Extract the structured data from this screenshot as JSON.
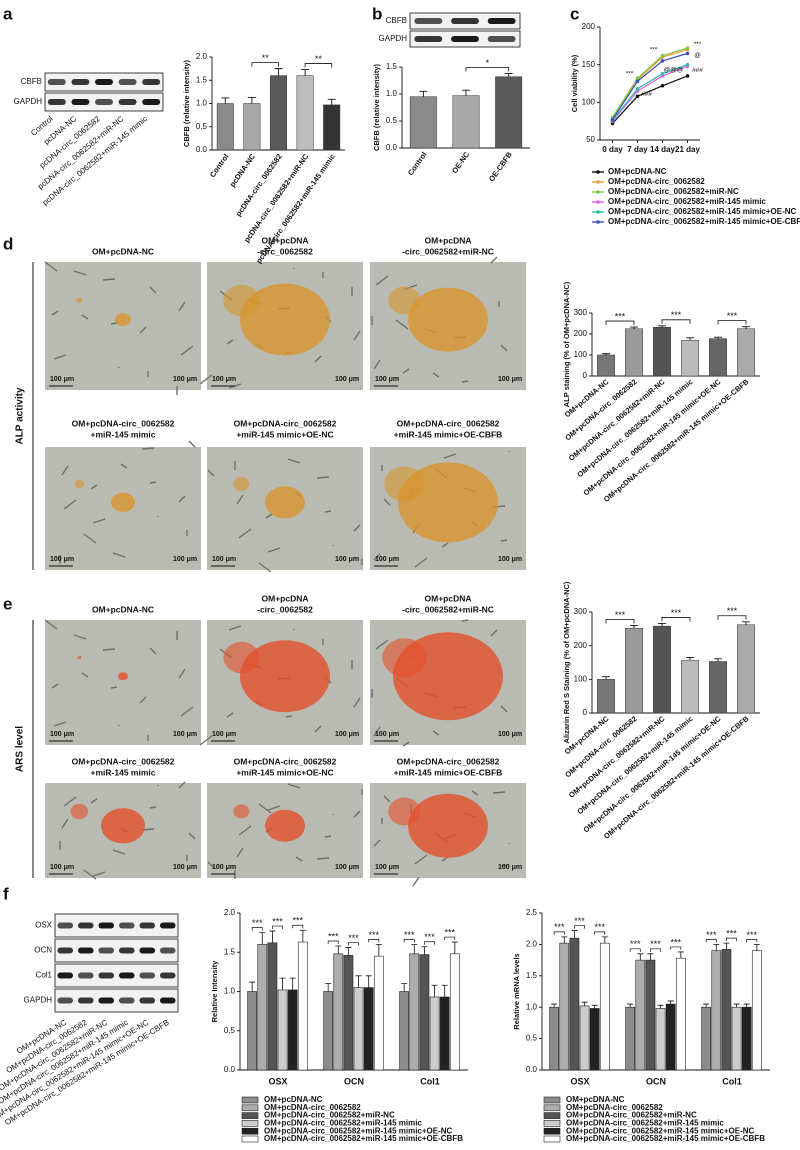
{
  "panels": [
    "a",
    "b",
    "c",
    "d",
    "e",
    "f"
  ],
  "blots": {
    "a": [
      "CBFB",
      "GAPDH"
    ],
    "b": [
      "CBFB",
      "GAPDH"
    ],
    "f": [
      "OSX",
      "OCN",
      "Col1",
      "GAPDH"
    ]
  },
  "images": {
    "scale_bar": "100 μm",
    "side_d": "ALP activity",
    "side_e": "ARS level",
    "d_captions": [
      [
        "OM+pcDNA-NC"
      ],
      [
        "OM+pcDNA",
        "-circ_0062582"
      ],
      [
        "OM+pcDNA",
        "-circ_0062582+miR-NC"
      ],
      [
        "OM+pcDNA-circ_0062582",
        "+miR-145 mimic"
      ],
      [
        "OM+pcDNA-circ_0062582",
        "+miR-145 mimic+OE-NC"
      ],
      [
        "OM+pcDNA-circ_0062582",
        "+miR-145 mimic+OE-CBFB"
      ]
    ],
    "e_captions": [
      [
        "OM+pcDNA-NC"
      ],
      [
        "OM+pcDNA",
        "-circ_0062582"
      ],
      [
        "OM+pcDNA",
        "-circ_0062582+miR-NC"
      ],
      [
        "OM+pcDNA-circ_0062582",
        "+miR-145 mimic"
      ],
      [
        "OM+pcDNA-circ_0062582",
        "+miR-145 mimic+OE-NC"
      ],
      [
        "OM+pcDNA-circ_0062582",
        "+miR-145 mimic+OE-CBFB"
      ]
    ]
  },
  "chart_data": [
    {
      "type": "bar",
      "y_label": "CBFB (relative intensity)",
      "categories": [
        "Control",
        "pcDNA-NC",
        "pcDNA-circ_0062582",
        "pcDNA-circ_0062582+miR-NC",
        "pcDNA-circ_0062582+miR-145 mimic"
      ],
      "values": [
        1.0,
        1.0,
        1.6,
        1.6,
        0.97
      ],
      "errors": [
        0.12,
        0.13,
        0.15,
        0.13,
        0.12
      ],
      "colors": [
        "#8a8a8a",
        "#a8a8a8",
        "#5a5a5a",
        "#bdbdbd",
        "#333333"
      ],
      "ylim": [
        0,
        2.0
      ],
      "yticks": [
        {
          "value": 0,
          "label": "0.0"
        },
        {
          "value": 0.5,
          "label": "0.5"
        },
        {
          "value": 1.0,
          "label": "1.0"
        },
        {
          "value": 1.5,
          "label": "1.5"
        },
        {
          "value": 2.0,
          "label": "2.0"
        }
      ],
      "annotations": [
        "**",
        "**"
      ]
    },
    {
      "type": "bar",
      "y_label": "CBFB (relative intensity)",
      "categories": [
        "Control",
        "OE-NC",
        "OE-CBFB"
      ],
      "values": [
        0.95,
        0.97,
        1.32
      ],
      "errors": [
        0.1,
        0.1,
        0.06
      ],
      "colors": [
        "#8a8a8a",
        "#a8a8a8",
        "#5a5a5a"
      ],
      "ylim": [
        0,
        1.5
      ],
      "yticks": [
        {
          "value": 0,
          "label": "0.0"
        },
        {
          "value": 0.5,
          "label": "0.5"
        },
        {
          "value": 1.0,
          "label": "1.0"
        },
        {
          "value": 1.5,
          "label": "1.5"
        }
      ],
      "annotations": [
        "*"
      ]
    },
    {
      "type": "line",
      "y_label": "Cell viability (%)",
      "categories": [
        "0 day",
        "7 day",
        "14 day",
        "21 day"
      ],
      "ylim": [
        50,
        200
      ],
      "yticks": [
        50,
        100,
        150,
        200
      ],
      "series": [
        {
          "name": "OM+pcDNA-NC",
          "color": "#111111",
          "values": [
            72,
            108,
            122,
            135
          ]
        },
        {
          "name": "OM+pcDNA-circ_0062582",
          "color": "#f39c34",
          "values": [
            78,
            130,
            160,
            170
          ]
        },
        {
          "name": "OM+pcDNA-circ_0062582+miR-NC",
          "color": "#7ac943",
          "values": [
            80,
            132,
            162,
            172
          ]
        },
        {
          "name": "OM+pcDNA-circ_0062582+miR-145 mimic",
          "color": "#e35ce0",
          "values": [
            75,
            115,
            135,
            148
          ]
        },
        {
          "name": "OM+pcDNA-circ_0062582+miR-145 mimic+OE-NC",
          "color": "#2bbfa4",
          "values": [
            76,
            118,
            138,
            150
          ]
        },
        {
          "name": "OM+pcDNA-circ_0062582+miR-145 mimic+OE-CBFB",
          "color": "#3b4fc4",
          "values": [
            77,
            128,
            155,
            165
          ]
        }
      ],
      "annotations": [
        "***",
        "***",
        "***",
        "@@@",
        "###",
        "###",
        "@"
      ]
    },
    {
      "type": "bar",
      "y_label": "ALP staining (% of OM+pcDNA-NC)",
      "categories": [
        "OM+pcDNA-NC",
        "OM+pcDNA-circ_0062582",
        "OM+pcDNA-circ_0062582+miR-NC",
        "OM+pcDNA-circ_0062582+miR-145 mimic",
        "OM+pcDNA-circ_0062582+miR-145 mimic+OE-NC",
        "OM+pcDNA-circ_0062582+miR-145 mimic+OE-CBFB"
      ],
      "values": [
        100,
        225,
        232,
        170,
        178,
        225
      ],
      "errors": [
        6,
        8,
        7,
        12,
        7,
        10
      ],
      "colors": [
        "#777777",
        "#9a9a9a",
        "#555555",
        "#bbbbbb",
        "#666666",
        "#aaaaaa"
      ],
      "ylim": [
        0,
        300
      ],
      "yticks": [
        0,
        100,
        200,
        300
      ],
      "annotations": [
        "***",
        "***",
        "***"
      ]
    },
    {
      "type": "bar",
      "y_label": "Alizarin Red S Staining (% of OM+pcDNA-NC)",
      "categories": [
        "OM+pcDNA-NC",
        "OM+pcDNA-circ_0062582",
        "OM+pcDNA-circ_0062582+miR-NC",
        "OM+pcDNA-circ_0062582+miR-145 mimic",
        "OM+pcDNA-circ_0062582+miR-145 mimic+OE-NC",
        "OM+pcDNA-circ_0062582+miR-145 mimic+OE-CBFB"
      ],
      "values": [
        100,
        252,
        258,
        157,
        153,
        262
      ],
      "errors": [
        8,
        8,
        8,
        8,
        8,
        9
      ],
      "colors": [
        "#777777",
        "#9a9a9a",
        "#555555",
        "#bbbbbb",
        "#666666",
        "#aaaaaa"
      ],
      "ylim": [
        0,
        300
      ],
      "yticks": [
        0,
        100,
        200,
        300
      ],
      "annotations": [
        "***",
        "***",
        "***"
      ]
    },
    {
      "type": "grouped_bar",
      "y_label": "Relative Intensity",
      "categories": [
        "OSX",
        "OCN",
        "Col1"
      ],
      "ylim": [
        0,
        2.0
      ],
      "yticks": [
        {
          "value": 0,
          "label": "0.0"
        },
        {
          "value": 0.5,
          "label": "0.5"
        },
        {
          "value": 1.0,
          "label": "1.0"
        },
        {
          "value": 1.5,
          "label": "1.5"
        },
        {
          "value": 2.0,
          "label": "2.0"
        }
      ],
      "series": [
        {
          "name": "OM+pcDNA-NC",
          "color": "#8c8c8c",
          "values": [
            1.0,
            1.0,
            1.0
          ],
          "errors": [
            0.12,
            0.1,
            0.1
          ]
        },
        {
          "name": "OM+pcDNA-circ_0062582",
          "color": "#adadad",
          "values": [
            1.6,
            1.48,
            1.48
          ],
          "errors": [
            0.15,
            0.1,
            0.12
          ]
        },
        {
          "name": "OM+pcDNA-circ_0062582+miR-NC",
          "color": "#555555",
          "values": [
            1.62,
            1.46,
            1.47
          ],
          "errors": [
            0.15,
            0.1,
            0.1
          ]
        },
        {
          "name": "OM+pcDNA-circ_0062582+miR-145 mimic",
          "color": "#cccccc",
          "values": [
            1.02,
            1.05,
            0.93
          ],
          "errors": [
            0.15,
            0.15,
            0.15
          ]
        },
        {
          "name": "OM+pcDNA-circ_0062582+miR-145 mimic+OE-NC",
          "color": "#222222",
          "values": [
            1.02,
            1.05,
            0.93
          ],
          "errors": [
            0.15,
            0.15,
            0.15
          ]
        },
        {
          "name": "OM+pcDNA-circ_0062582+miR-145 mimic+OE-CBFB",
          "color": "#ffffff",
          "values": [
            1.63,
            1.45,
            1.48
          ],
          "errors": [
            0.15,
            0.15,
            0.15
          ]
        }
      ],
      "annotations": [
        "***",
        "***",
        "***",
        "***",
        "***",
        "***",
        "***",
        "***",
        "***"
      ]
    },
    {
      "type": "grouped_bar",
      "y_label": "Relative mRNA levels",
      "categories": [
        "OSX",
        "OCN",
        "Col1"
      ],
      "ylim": [
        0,
        2.5
      ],
      "yticks": [
        {
          "value": 0,
          "label": "0.0"
        },
        {
          "value": 0.5,
          "label": "0.5"
        },
        {
          "value": 1.0,
          "label": "1.0"
        },
        {
          "value": 1.5,
          "label": "1.5"
        },
        {
          "value": 2.0,
          "label": "2.0"
        },
        {
          "value": 2.5,
          "label": "2.5"
        }
      ],
      "series": [
        {
          "name": "OM+pcDNA-NC",
          "color": "#8c8c8c",
          "values": [
            1.0,
            1.0,
            1.0
          ],
          "errors": [
            0.05,
            0.05,
            0.05
          ]
        },
        {
          "name": "OM+pcDNA-circ_0062582",
          "color": "#adadad",
          "values": [
            2.02,
            1.75,
            1.9
          ],
          "errors": [
            0.1,
            0.1,
            0.1
          ]
        },
        {
          "name": "OM+pcDNA-circ_0062582+miR-NC",
          "color": "#555555",
          "values": [
            2.1,
            1.75,
            1.92
          ],
          "errors": [
            0.12,
            0.1,
            0.1
          ]
        },
        {
          "name": "OM+pcDNA-circ_0062582+miR-145 mimic",
          "color": "#cccccc",
          "values": [
            1.02,
            0.98,
            1.0
          ],
          "errors": [
            0.06,
            0.05,
            0.05
          ]
        },
        {
          "name": "OM+pcDNA-circ_0062582+miR-145 mimic+OE-NC",
          "color": "#222222",
          "values": [
            0.98,
            1.05,
            1.0
          ],
          "errors": [
            0.05,
            0.05,
            0.05
          ]
        },
        {
          "name": "OM+pcDNA-circ_0062582+miR-145 mimic+OE-CBFB",
          "color": "#ffffff",
          "values": [
            2.02,
            1.78,
            1.9
          ],
          "errors": [
            0.1,
            0.1,
            0.1
          ]
        }
      ],
      "annotations": [
        "***",
        "***",
        "***",
        "***",
        "***",
        "***",
        "***",
        "***",
        "***"
      ]
    }
  ]
}
